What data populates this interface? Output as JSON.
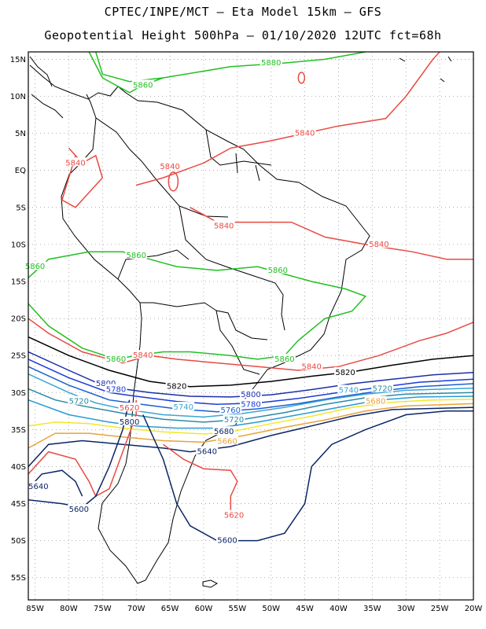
{
  "header": {
    "line1": "CPTEC/INPE/MCT –  Eta Model 15km – GFS",
    "line2": "Geopotential Height 500hPa – 01/10/2020 12UTC fct=68h"
  },
  "axes": {
    "lat_ticks": [
      "15N",
      "10N",
      "5N",
      "EQ",
      "5S",
      "10S",
      "15S",
      "20S",
      "25S",
      "30S",
      "35S",
      "40S",
      "45S",
      "50S",
      "55S"
    ],
    "lon_ticks": [
      "85W",
      "80W",
      "75W",
      "70W",
      "65W",
      "60W",
      "55W",
      "50W",
      "45W",
      "40W",
      "35W",
      "30W",
      "25W",
      "20W"
    ],
    "lat_range": [
      16,
      -58
    ],
    "lon_range": [
      -86,
      -20
    ],
    "grid": "dotted"
  },
  "contour_colors": {
    "5600": "#0b2566",
    "5620": "#e84a43",
    "5640": "#0b2566",
    "5660": "#e8a33a",
    "5680": "#f1e82a",
    "5700": "#2a9ad3",
    "5720": "#2a8ba8",
    "5740": "#3aa5d4",
    "5760": "#1a5fd1",
    "5780": "#1a3ad8",
    "5800": "#1a2fa8",
    "5820": "#000000",
    "5840": "#e84a43",
    "5860": "#22c022",
    "5880": "#22c022"
  },
  "contour_labels": [
    {
      "text": "5880",
      "lon": -50.0,
      "lat": 14.5,
      "color": "#22c022"
    },
    {
      "text": "5860",
      "lon": -69.0,
      "lat": 11.5,
      "color": "#22c022"
    },
    {
      "text": "5840",
      "lon": -45.0,
      "lat": 5.0,
      "color": "#e84a43"
    },
    {
      "text": "5840",
      "lon": -79.0,
      "lat": 1.0,
      "color": "#e84a43"
    },
    {
      "text": "5840",
      "lon": -65.0,
      "lat": 0.5,
      "color": "#e84a43"
    },
    {
      "text": "5840",
      "lon": -57.0,
      "lat": -7.5,
      "color": "#e84a43"
    },
    {
      "text": "5840",
      "lon": -34.0,
      "lat": -10.0,
      "color": "#e84a43"
    },
    {
      "text": "5860",
      "lon": -70.0,
      "lat": -11.5,
      "color": "#22c022"
    },
    {
      "text": "5860",
      "lon": -85.0,
      "lat": -13.0,
      "color": "#22c022"
    },
    {
      "text": "5860",
      "lon": -49.0,
      "lat": -13.5,
      "color": "#22c022"
    },
    {
      "text": "5860",
      "lon": -73.0,
      "lat": -25.5,
      "color": "#22c022"
    },
    {
      "text": "5840",
      "lon": -69.0,
      "lat": -25.0,
      "color": "#e84a43"
    },
    {
      "text": "5860",
      "lon": -48.0,
      "lat": -25.5,
      "color": "#22c022"
    },
    {
      "text": "5840",
      "lon": -44.0,
      "lat": -26.5,
      "color": "#e84a43"
    },
    {
      "text": "5820",
      "lon": -39.0,
      "lat": -27.3,
      "color": "#000000"
    },
    {
      "text": "5820",
      "lon": -64.0,
      "lat": -29.2,
      "color": "#000000"
    },
    {
      "text": "5800",
      "lon": -74.5,
      "lat": -28.8,
      "color": "#1a2fa8"
    },
    {
      "text": "5780",
      "lon": -73.0,
      "lat": -29.6,
      "color": "#1a3ad8"
    },
    {
      "text": "5720",
      "lon": -78.5,
      "lat": -31.2,
      "color": "#2a8ba8"
    },
    {
      "text": "5620",
      "lon": -71.0,
      "lat": -32.1,
      "color": "#e84a43"
    },
    {
      "text": "5800",
      "lon": -71.0,
      "lat": -34.0,
      "color": "#0b2566"
    },
    {
      "text": "5740",
      "lon": -63.0,
      "lat": -32.0,
      "color": "#3aa5d4"
    },
    {
      "text": "5800",
      "lon": -53.0,
      "lat": -30.3,
      "color": "#1a2fa8"
    },
    {
      "text": "5780",
      "lon": -53.0,
      "lat": -31.6,
      "color": "#1a3ad8"
    },
    {
      "text": "5760",
      "lon": -56.0,
      "lat": -32.4,
      "color": "#1a5fd1"
    },
    {
      "text": "5720",
      "lon": -55.5,
      "lat": -33.7,
      "color": "#2a8ba8"
    },
    {
      "text": "5740",
      "lon": -38.5,
      "lat": -29.7,
      "color": "#3aa5d4"
    },
    {
      "text": "5720",
      "lon": -33.5,
      "lat": -29.5,
      "color": "#2a8ba8"
    },
    {
      "text": "5680",
      "lon": -34.5,
      "lat": -31.2,
      "color": "#e8a33a"
    },
    {
      "text": "5680",
      "lon": -57.0,
      "lat": -35.3,
      "color": "#0b2566"
    },
    {
      "text": "5660",
      "lon": -56.5,
      "lat": -36.6,
      "color": "#e8a33a"
    },
    {
      "text": "5640",
      "lon": -59.5,
      "lat": -38.0,
      "color": "#0b2566"
    },
    {
      "text": "5640",
      "lon": -84.5,
      "lat": -42.7,
      "color": "#0b2566"
    },
    {
      "text": "5600",
      "lon": -78.5,
      "lat": -45.8,
      "color": "#0b2566"
    },
    {
      "text": "5620",
      "lon": -55.5,
      "lat": -46.6,
      "color": "#e84a43"
    },
    {
      "text": "5600",
      "lon": -56.5,
      "lat": -50.0,
      "color": "#0b2566"
    }
  ]
}
